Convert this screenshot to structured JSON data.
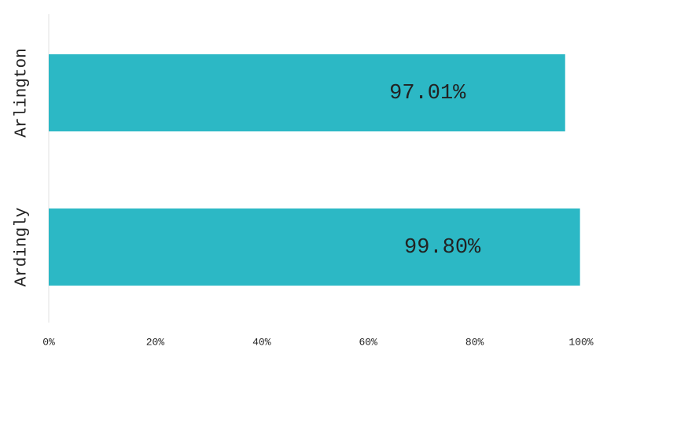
{
  "chart_data": {
    "type": "hbar",
    "categories": [
      "Arlington",
      "Ardingly"
    ],
    "values": [
      97.01,
      99.8
    ],
    "value_labels": [
      "97.01%",
      "99.80%"
    ],
    "color": "#2cb8c5",
    "xlim": [
      0,
      100
    ],
    "xticks": [
      {
        "value": 0,
        "label": "0%"
      },
      {
        "value": 20,
        "label": "20%"
      },
      {
        "value": 40,
        "label": "40%"
      },
      {
        "value": 60,
        "label": "60%"
      },
      {
        "value": 80,
        "label": "80%"
      },
      {
        "value": 100,
        "label": "100%"
      }
    ]
  }
}
